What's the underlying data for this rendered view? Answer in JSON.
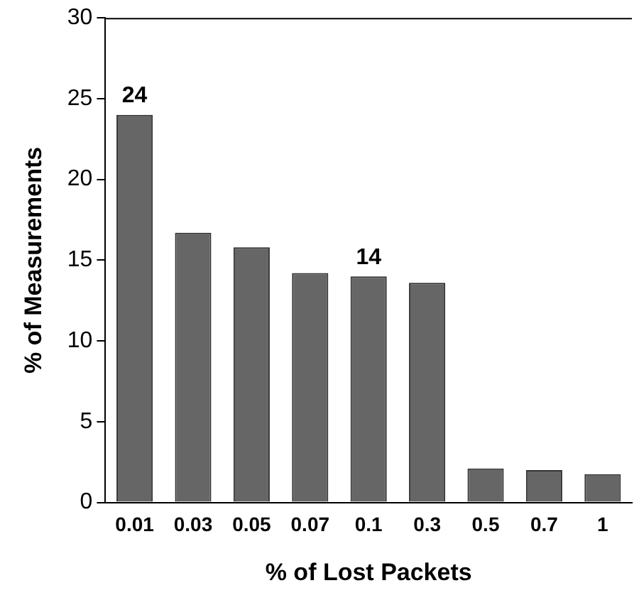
{
  "chart_data": {
    "type": "bar",
    "xlabel": "% of Lost Packets",
    "ylabel": "% of Measurements",
    "categories": [
      "0.01",
      "0.03",
      "0.05",
      "0.07",
      "0.1",
      "0.3",
      "0.5",
      "0.7",
      "1"
    ],
    "values": [
      24,
      16.7,
      15.8,
      14.2,
      14,
      13.6,
      2.1,
      2.0,
      1.75
    ],
    "value_labels": [
      "24",
      null,
      null,
      null,
      "14",
      null,
      null,
      null,
      null
    ],
    "color": "#666666",
    "ylim": [
      0,
      30
    ],
    "yticks": [
      0,
      5,
      10,
      15,
      20,
      25,
      30
    ],
    "grid": false,
    "legend": false
  }
}
